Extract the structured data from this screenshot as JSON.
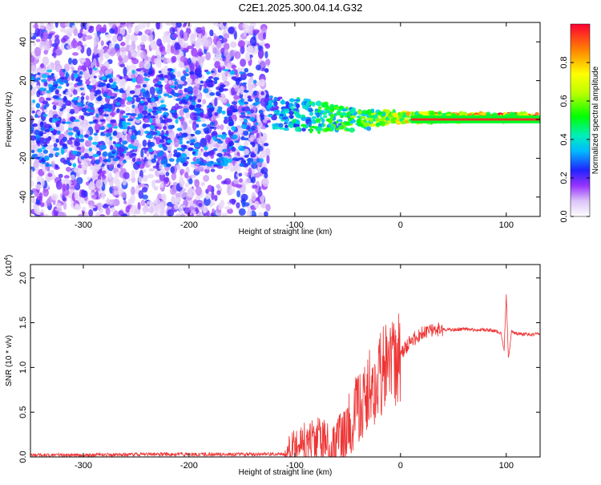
{
  "title": "C2E1.2025.300.04.14.G32",
  "chart_data": [
    {
      "type": "heatmap",
      "title": "C2E1.2025.300.04.14.G32",
      "xlabel": "Height of straight line (km)",
      "ylabel": "Frequency (Hz)",
      "xlim": [
        -350,
        132
      ],
      "ylim": [
        -50,
        50
      ],
      "x_ticks": [
        "-300",
        "-200",
        "-100",
        "0",
        "100"
      ],
      "y_ticks": [
        "-40",
        "-20",
        "0",
        "20",
        "40"
      ],
      "colorbar": {
        "label": "Normalized spectral amplitude",
        "range": [
          0.0,
          1.0
        ],
        "ticks": [
          "0.0",
          "0.2",
          "0.4",
          "0.6",
          "0.8"
        ],
        "colormap": "rainbow"
      },
      "description_points": [
        {
          "x": -350,
          "amplitude": 0.1,
          "noise_band_hz": 50
        },
        {
          "x": -130,
          "amplitude": 0.1,
          "noise_band_hz": 50
        },
        {
          "x": -125,
          "amplitude": 0.35,
          "noise_band_hz": 8
        },
        {
          "x": -80,
          "amplitude": 0.5,
          "noise_band_hz": 8
        },
        {
          "x": -40,
          "amplitude": 0.6,
          "noise_band_hz": 5
        },
        {
          "x": 0,
          "amplitude": 0.75,
          "noise_band_hz": 3
        },
        {
          "x": 50,
          "amplitude": 0.9,
          "noise_band_hz": 2
        },
        {
          "x": 132,
          "amplitude": 0.95,
          "noise_band_hz": 2
        }
      ]
    },
    {
      "type": "line",
      "xlabel": "Height of straight line (km)",
      "ylabel": "SNR (10 * v/v)",
      "y_multiplier": "(x10^4)",
      "xlim": [
        -350,
        132
      ],
      "ylim": [
        0,
        2.15
      ],
      "x_ticks": [
        "-300",
        "-200",
        "-100",
        "0",
        "100"
      ],
      "y_ticks": [
        "0.0",
        "0.5",
        "1.0",
        "1.5",
        "2.0"
      ],
      "series": [
        {
          "color": "#ee3333",
          "x": [
            -350,
            -300,
            -250,
            -200,
            -150,
            -110,
            -100,
            -90,
            -80,
            -70,
            -60,
            -50,
            -45,
            -40,
            -35,
            -30,
            -25,
            -20,
            -15,
            -10,
            -5,
            0,
            10,
            20,
            30,
            40,
            50,
            60,
            70,
            80,
            90,
            95,
            98,
            100,
            102,
            105,
            110,
            120,
            132
          ],
          "y": [
            0.02,
            0.02,
            0.03,
            0.03,
            0.03,
            0.03,
            0.12,
            0.18,
            0.22,
            0.12,
            0.08,
            0.3,
            0.45,
            0.5,
            0.6,
            0.75,
            0.8,
            0.9,
            0.95,
            1.0,
            1.05,
            1.15,
            1.3,
            1.38,
            1.42,
            1.43,
            1.42,
            1.43,
            1.42,
            1.42,
            1.41,
            1.38,
            1.2,
            1.8,
            1.1,
            1.4,
            1.38,
            1.37,
            1.37
          ]
        }
      ]
    }
  ]
}
